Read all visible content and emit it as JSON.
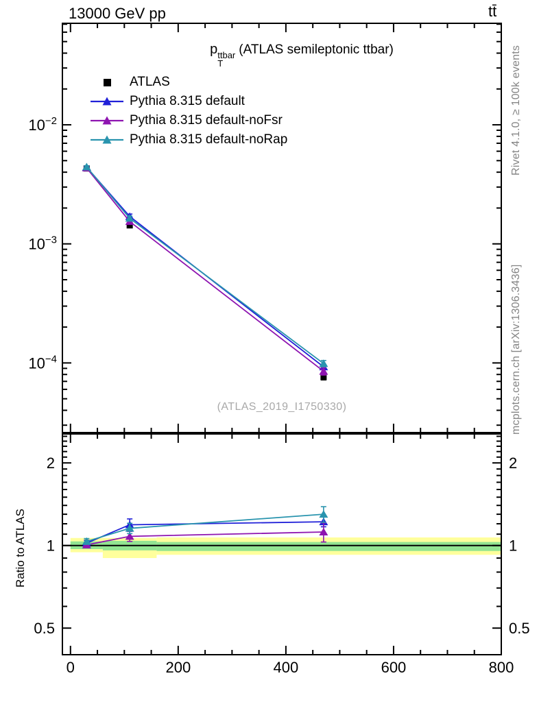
{
  "header": {
    "beam_energy": "13000 GeV pp",
    "process": "tt̄"
  },
  "title": {
    "symbol": "p",
    "superscript": "ttbar",
    "subscript": "T",
    "description": "(ATLAS semileptonic ttbar)"
  },
  "legend": {
    "items": [
      {
        "label": "ATLAS"
      },
      {
        "label": "Pythia 8.315 default"
      },
      {
        "label": "Pythia 8.315 default-noFsr"
      },
      {
        "label": "Pythia 8.315 default-noRap"
      }
    ]
  },
  "watermark": "(ATLAS_2019_I1750330)",
  "side_notes": {
    "top": "Rivet 4.1.0, ≥ 100k events",
    "bottom": "mcplots.cern.ch [arXiv:1306.3436]"
  },
  "ratio_axis_label": "Ratio to ATLAS",
  "chart_data": {
    "type": "line",
    "title": "pT^ttbar (ATLAS semileptonic ttbar)",
    "x_bins": [
      [
        0,
        60
      ],
      [
        60,
        160
      ],
      [
        160,
        800
      ]
    ],
    "x_centers": [
      30,
      110,
      470
    ],
    "xlim": [
      -15,
      800
    ],
    "x_ticks": [
      0,
      200,
      400,
      600,
      800
    ],
    "x_minor_step": 50,
    "main_panel": {
      "scale": "log",
      "ylim": [
        2.6e-05,
        0.0712
      ],
      "y_labeled_exponents": [
        -2,
        -3,
        -4
      ],
      "series": [
        {
          "name": "ATLAS",
          "color": "#000000",
          "marker": "square",
          "values": [
            0.0043,
            0.00143,
            7.6e-05
          ],
          "errors": [
            8e-05,
            4e-05,
            4e-06
          ]
        },
        {
          "name": "Pythia 8.315 default",
          "color": "#2020d8",
          "marker": "triangle",
          "values": [
            0.0044,
            0.0017,
            9.27e-05
          ],
          "errors": [
            0.0001,
            8e-05,
            4e-06
          ]
        },
        {
          "name": "Pythia 8.315 default-noFsr",
          "color": "#8e14b0",
          "marker": "triangle",
          "values": [
            0.00434,
            0.00154,
            8.51e-05
          ],
          "errors": [
            9e-05,
            6e-05,
            6e-06
          ]
        },
        {
          "name": "Pythia 8.315 default-noRap",
          "color": "#2994ae",
          "marker": "triangle",
          "values": [
            0.00443,
            0.00164,
            9.88e-05
          ],
          "errors": [
            0.0001,
            7e-05,
            6e-06
          ]
        }
      ]
    },
    "ratio_panel": {
      "scale": "log",
      "ylim": [
        0.4,
        2.55
      ],
      "y_labeled_ticks": [
        0.5,
        1,
        2
      ],
      "reference_line": 1,
      "band_colors": {
        "inner": "#92e492",
        "outer": "#ffff9c"
      },
      "bands": [
        {
          "x0": 0,
          "x1": 60,
          "green": [
            0.97,
            1.035
          ],
          "yellow": [
            0.945,
            1.065
          ]
        },
        {
          "x0": 60,
          "x1": 160,
          "green": [
            0.96,
            1.04
          ],
          "yellow": [
            0.9,
            1.065
          ]
        },
        {
          "x0": 160,
          "x1": 800,
          "green": [
            0.955,
            1.03
          ],
          "yellow": [
            0.925,
            1.07
          ]
        }
      ],
      "series": [
        {
          "name": "Pythia 8.315 default",
          "color": "#2020d8",
          "values": [
            1.02,
            1.19,
            1.22
          ],
          "errors": [
            0.025,
            0.06,
            0.05
          ]
        },
        {
          "name": "Pythia 8.315 default-noFsr",
          "color": "#8e14b0",
          "values": [
            1.005,
            1.08,
            1.12
          ],
          "errors": [
            0.02,
            0.045,
            0.09
          ]
        },
        {
          "name": "Pythia 8.315 default-noRap",
          "color": "#2994ae",
          "values": [
            1.035,
            1.155,
            1.3
          ],
          "errors": [
            0.025,
            0.05,
            0.085
          ]
        }
      ]
    }
  }
}
